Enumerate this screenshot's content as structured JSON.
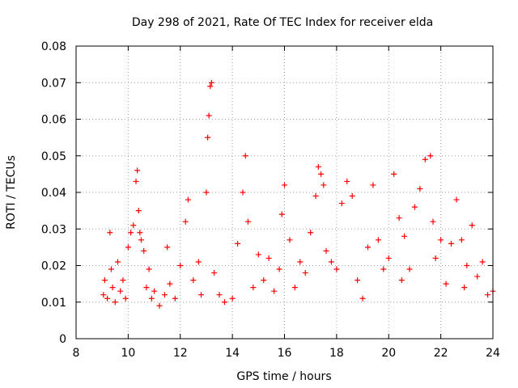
{
  "chart_data": {
    "type": "scatter",
    "title": "Day 298 of 2021, Rate Of TEC Index for receiver elda",
    "xlabel": "GPS time / hours",
    "ylabel": "ROTI / TECUs",
    "xlim": [
      8,
      24
    ],
    "ylim": [
      0,
      0.08
    ],
    "x_ticks": [
      8,
      10,
      12,
      14,
      16,
      18,
      20,
      22,
      24
    ],
    "x_tick_labels": [
      "8",
      "10",
      "12",
      "14",
      "16",
      "18",
      "20",
      "22",
      "24"
    ],
    "y_ticks": [
      0,
      0.01,
      0.02,
      0.03,
      0.04,
      0.05,
      0.06,
      0.07,
      0.08
    ],
    "y_tick_labels": [
      "0",
      "0.01",
      "0.02",
      "0.03",
      "0.04",
      "0.05",
      "0.06",
      "0.07",
      "0.08"
    ],
    "grid": true,
    "marker": "+",
    "color": "#ff0000",
    "series": [
      {
        "name": "ROTI",
        "x": [
          9.05,
          9.1,
          9.2,
          9.3,
          9.35,
          9.4,
          9.5,
          9.6,
          9.7,
          9.8,
          9.9,
          10.0,
          10.1,
          10.2,
          10.3,
          10.35,
          10.4,
          10.45,
          10.5,
          10.6,
          10.7,
          10.8,
          10.9,
          11.0,
          11.2,
          11.4,
          11.5,
          11.6,
          11.8,
          12.0,
          12.2,
          12.3,
          12.5,
          12.7,
          12.8,
          13.0,
          13.05,
          13.1,
          13.15,
          13.2,
          13.3,
          13.5,
          13.7,
          14.0,
          14.2,
          14.4,
          14.5,
          14.6,
          14.8,
          15.0,
          15.2,
          15.4,
          15.6,
          15.8,
          15.9,
          16.0,
          16.2,
          16.4,
          16.6,
          16.8,
          17.0,
          17.2,
          17.3,
          17.4,
          17.5,
          17.6,
          17.8,
          18.0,
          18.2,
          18.4,
          18.6,
          18.8,
          19.0,
          19.2,
          19.4,
          19.6,
          19.8,
          20.0,
          20.2,
          20.4,
          20.5,
          20.6,
          20.8,
          21.0,
          21.2,
          21.4,
          21.6,
          21.7,
          21.8,
          22.0,
          22.2,
          22.4,
          22.6,
          22.8,
          22.9,
          23.0,
          23.2,
          23.4,
          23.6,
          23.8,
          24.0
        ],
        "y": [
          0.012,
          0.016,
          0.011,
          0.029,
          0.019,
          0.014,
          0.01,
          0.021,
          0.013,
          0.016,
          0.011,
          0.025,
          0.029,
          0.031,
          0.043,
          0.046,
          0.035,
          0.029,
          0.027,
          0.024,
          0.014,
          0.019,
          0.011,
          0.013,
          0.009,
          0.012,
          0.025,
          0.015,
          0.011,
          0.02,
          0.032,
          0.038,
          0.016,
          0.021,
          0.012,
          0.04,
          0.055,
          0.061,
          0.069,
          0.07,
          0.018,
          0.012,
          0.01,
          0.011,
          0.026,
          0.04,
          0.05,
          0.032,
          0.014,
          0.023,
          0.016,
          0.022,
          0.013,
          0.019,
          0.034,
          0.042,
          0.027,
          0.014,
          0.021,
          0.018,
          0.029,
          0.039,
          0.047,
          0.045,
          0.042,
          0.024,
          0.021,
          0.019,
          0.037,
          0.043,
          0.039,
          0.016,
          0.011,
          0.025,
          0.042,
          0.027,
          0.019,
          0.022,
          0.045,
          0.033,
          0.016,
          0.028,
          0.019,
          0.036,
          0.041,
          0.049,
          0.05,
          0.032,
          0.022,
          0.027,
          0.015,
          0.026,
          0.038,
          0.027,
          0.014,
          0.02,
          0.031,
          0.017,
          0.021,
          0.012,
          0.013
        ]
      }
    ]
  }
}
